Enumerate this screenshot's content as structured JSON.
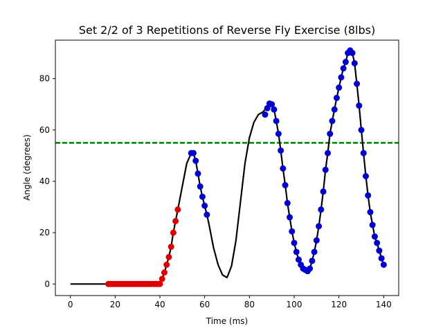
{
  "chart_data": {
    "type": "line",
    "title": "Set 2/2 of 3 Repetitions of Reverse Fly Exercise (8lbs)",
    "xlabel": "Time (ms)",
    "ylabel": "Angle (degrees)",
    "xlim": [
      -6.7,
      146.7
    ],
    "ylim": [
      -4.5,
      95.0
    ],
    "xticks": [
      0,
      20,
      40,
      60,
      80,
      100,
      120,
      140
    ],
    "yticks": [
      0,
      20,
      40,
      60,
      80
    ],
    "grid": false,
    "threshold": {
      "y": 55,
      "color": "#008000",
      "style": "dashed"
    },
    "line_color": "#000000",
    "marker_colors": {
      "red": "#dd0000",
      "blue": "#0000cc"
    },
    "line": {
      "x": [
        0,
        17,
        40,
        41,
        42,
        43,
        44,
        45,
        46,
        47,
        48,
        50,
        52,
        54,
        55,
        56,
        57,
        58,
        59,
        60,
        61,
        62,
        64,
        66,
        68,
        70,
        72,
        74,
        76,
        78,
        80,
        82,
        84,
        86,
        88,
        89,
        90,
        91,
        92,
        93,
        94,
        95,
        96,
        97,
        98,
        99,
        100,
        101,
        102,
        103,
        104,
        105,
        106,
        107,
        108,
        109,
        110,
        111,
        112,
        113,
        114,
        115,
        116,
        117,
        118,
        119,
        120,
        121,
        122,
        123,
        124,
        125,
        126,
        127,
        128,
        129,
        130,
        131,
        132,
        133,
        134,
        135,
        136,
        137,
        138,
        139,
        140
      ],
      "y": [
        0,
        0,
        0,
        2,
        4.5,
        7.5,
        10.5,
        14.5,
        20,
        24.5,
        29,
        38,
        47,
        51,
        51,
        48,
        43,
        38,
        34,
        30.5,
        27,
        23,
        14,
        7.5,
        3.5,
        2.5,
        7,
        17,
        32,
        47,
        57,
        63,
        66,
        67,
        69,
        70.3,
        70,
        68,
        63.5,
        58.5,
        52,
        45,
        38.5,
        31.5,
        26,
        20.5,
        16,
        12.5,
        9.5,
        7.5,
        6,
        5.5,
        5,
        6,
        9,
        12.5,
        17,
        22.5,
        29,
        36,
        44.5,
        51,
        58.5,
        63.5,
        68,
        72.5,
        76.5,
        80.5,
        84,
        86.5,
        90,
        91,
        90,
        86,
        78,
        69.5,
        60,
        51,
        42,
        34.5,
        28,
        23,
        18.5,
        16,
        13,
        10,
        7.5
      ]
    },
    "series": [
      {
        "marker": "red",
        "x": [
          17,
          18,
          19,
          20,
          21,
          22,
          23,
          24,
          25,
          26,
          27,
          28,
          29,
          30,
          31,
          32,
          33,
          34,
          35,
          36,
          37,
          38,
          39,
          40,
          41,
          42,
          43,
          44,
          45,
          46,
          47,
          48
        ],
        "y": [
          0,
          0,
          0,
          0,
          0,
          0,
          0,
          0,
          0,
          0,
          0,
          0,
          0,
          0,
          0,
          0,
          0,
          0,
          0,
          0,
          0,
          0,
          0,
          0,
          2,
          4.5,
          7.5,
          10.5,
          14.5,
          20,
          24.5,
          29
        ]
      },
      {
        "marker": "blue",
        "x": [
          54,
          55,
          56,
          57,
          58,
          59,
          60,
          61,
          87,
          88,
          89,
          90,
          91,
          92,
          93,
          94,
          95,
          96,
          97,
          98,
          99,
          100,
          101,
          102,
          103,
          104,
          105,
          106,
          107,
          108,
          109,
          110,
          111,
          112,
          113,
          114,
          115,
          116,
          117,
          118,
          119,
          120,
          121,
          122,
          123,
          124,
          125,
          126,
          127,
          128,
          129,
          130,
          131,
          132,
          133,
          134,
          135,
          136,
          137,
          138,
          139,
          140
        ],
        "y": [
          51,
          51,
          48,
          43,
          38,
          34,
          30.5,
          27,
          66,
          68.5,
          70.3,
          70,
          68,
          63.5,
          58.5,
          52,
          45,
          38.5,
          31.5,
          26,
          20.5,
          16,
          12.5,
          9.5,
          7.5,
          6,
          5.5,
          5,
          6,
          9,
          12.5,
          17,
          22.5,
          29,
          36,
          44.5,
          51,
          58.5,
          63.5,
          68,
          72.5,
          76.5,
          80.5,
          84,
          86.5,
          90,
          91,
          90,
          86,
          78,
          69.5,
          60,
          51,
          42,
          34.5,
          28,
          23,
          18.5,
          16,
          13,
          10,
          7.5
        ]
      }
    ]
  }
}
